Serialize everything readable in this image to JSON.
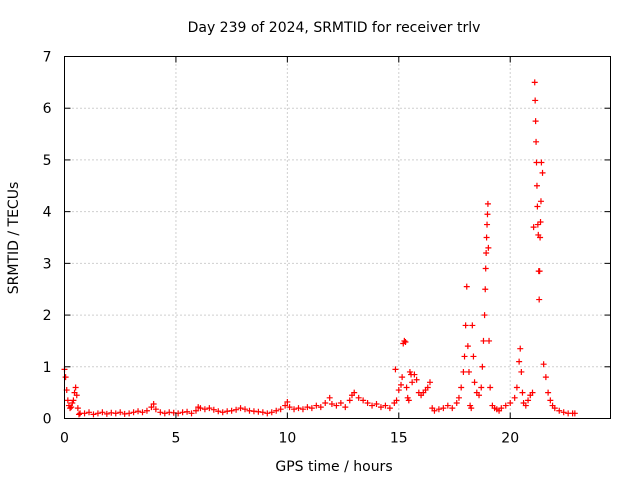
{
  "chart_data": {
    "type": "scatter",
    "title": "Day 239 of 2024, SRMTID for receiver trlv",
    "xlabel": "GPS time / hours",
    "ylabel": "SRMTID / TECUs",
    "xlim": [
      0,
      24.5
    ],
    "ylim": [
      0,
      7
    ],
    "x_ticks": [
      0,
      5,
      10,
      15,
      20
    ],
    "y_ticks": [
      0,
      1,
      2,
      3,
      4,
      5,
      6,
      7
    ],
    "x_tick_labels": [
      "0",
      "5",
      "10",
      "15",
      "20"
    ],
    "y_tick_labels": [
      "0",
      "1",
      "2",
      "3",
      "4",
      "5",
      "6",
      "7"
    ],
    "grid": true,
    "marker": "plus",
    "series": [
      {
        "name": "SRMTID",
        "color": "#ff0000",
        "x": [
          0.0,
          0.05,
          0.1,
          0.15,
          0.2,
          0.25,
          0.3,
          0.35,
          0.4,
          0.45,
          0.5,
          0.55,
          0.6,
          0.65,
          0.7,
          0.9,
          1.1,
          1.3,
          1.5,
          1.7,
          1.9,
          2.1,
          2.3,
          2.5,
          2.7,
          2.9,
          3.1,
          3.3,
          3.5,
          3.7,
          3.9,
          4.0,
          4.1,
          4.3,
          4.5,
          4.7,
          4.9,
          5.1,
          5.3,
          5.5,
          5.7,
          5.9,
          6.0,
          6.1,
          6.3,
          6.5,
          6.7,
          6.9,
          7.1,
          7.3,
          7.5,
          7.7,
          7.9,
          8.1,
          8.3,
          8.5,
          8.7,
          8.9,
          9.1,
          9.3,
          9.5,
          9.7,
          9.9,
          10.0,
          10.1,
          10.3,
          10.5,
          10.7,
          10.9,
          11.1,
          11.3,
          11.5,
          11.7,
          11.9,
          12.0,
          12.2,
          12.4,
          12.6,
          12.8,
          12.9,
          13.0,
          13.2,
          13.4,
          13.6,
          13.8,
          14.0,
          14.2,
          14.4,
          14.6,
          14.8,
          14.85,
          14.9,
          15.0,
          15.1,
          15.15,
          15.2,
          15.25,
          15.3,
          15.35,
          15.4,
          15.45,
          15.5,
          15.55,
          15.6,
          15.7,
          15.8,
          15.9,
          16.0,
          16.1,
          16.2,
          16.3,
          16.4,
          16.5,
          16.6,
          16.8,
          17.0,
          17.2,
          17.4,
          17.6,
          17.7,
          17.8,
          17.9,
          17.95,
          18.0,
          18.05,
          18.1,
          18.15,
          18.2,
          18.25,
          18.3,
          18.35,
          18.4,
          18.5,
          18.6,
          18.7,
          18.75,
          18.8,
          18.85,
          18.88,
          18.9,
          18.92,
          18.94,
          18.96,
          18.98,
          19.0,
          19.02,
          19.05,
          19.1,
          19.2,
          19.3,
          19.4,
          19.5,
          19.6,
          19.8,
          20.0,
          20.2,
          20.3,
          20.4,
          20.45,
          20.5,
          20.55,
          20.6,
          20.7,
          20.8,
          20.9,
          21.0,
          21.05,
          21.1,
          21.12,
          21.14,
          21.16,
          21.18,
          21.2,
          21.22,
          21.24,
          21.26,
          21.28,
          21.3,
          21.32,
          21.34,
          21.36,
          21.38,
          21.4,
          21.45,
          21.5,
          21.6,
          21.7,
          21.8,
          21.9,
          22.0,
          22.2,
          22.4,
          22.6,
          22.8,
          22.9
        ],
        "y": [
          0.95,
          0.8,
          0.55,
          0.35,
          0.25,
          0.2,
          0.22,
          0.3,
          0.35,
          0.5,
          0.6,
          0.45,
          0.2,
          0.08,
          0.1,
          0.1,
          0.12,
          0.08,
          0.1,
          0.12,
          0.09,
          0.11,
          0.1,
          0.12,
          0.09,
          0.1,
          0.12,
          0.14,
          0.12,
          0.15,
          0.22,
          0.28,
          0.18,
          0.12,
          0.1,
          0.12,
          0.11,
          0.1,
          0.12,
          0.13,
          0.1,
          0.15,
          0.22,
          0.2,
          0.18,
          0.2,
          0.17,
          0.14,
          0.12,
          0.14,
          0.15,
          0.17,
          0.2,
          0.18,
          0.15,
          0.14,
          0.13,
          0.12,
          0.1,
          0.12,
          0.15,
          0.18,
          0.25,
          0.32,
          0.22,
          0.18,
          0.2,
          0.18,
          0.22,
          0.2,
          0.25,
          0.22,
          0.3,
          0.4,
          0.28,
          0.25,
          0.3,
          0.22,
          0.35,
          0.45,
          0.5,
          0.4,
          0.35,
          0.3,
          0.25,
          0.28,
          0.22,
          0.25,
          0.2,
          0.3,
          0.95,
          0.35,
          0.55,
          0.65,
          0.8,
          1.45,
          1.5,
          1.48,
          0.6,
          0.4,
          0.35,
          0.9,
          0.85,
          0.7,
          0.85,
          0.75,
          0.5,
          0.45,
          0.5,
          0.55,
          0.6,
          0.7,
          0.2,
          0.15,
          0.18,
          0.2,
          0.25,
          0.2,
          0.3,
          0.4,
          0.6,
          0.9,
          1.2,
          1.8,
          2.55,
          1.4,
          0.9,
          0.25,
          0.2,
          1.8,
          1.2,
          0.7,
          0.5,
          0.45,
          0.6,
          1.0,
          1.5,
          2.0,
          2.5,
          2.9,
          3.2,
          3.5,
          3.75,
          3.95,
          4.15,
          3.3,
          1.5,
          0.6,
          0.25,
          0.2,
          0.18,
          0.15,
          0.2,
          0.25,
          0.3,
          0.4,
          0.6,
          1.1,
          1.35,
          0.9,
          0.5,
          0.3,
          0.25,
          0.35,
          0.45,
          0.5,
          3.7,
          6.5,
          6.15,
          5.75,
          5.35,
          4.95,
          4.5,
          4.1,
          3.75,
          3.55,
          2.85,
          2.3,
          2.85,
          3.5,
          3.8,
          4.2,
          4.95,
          4.75,
          1.05,
          0.8,
          0.5,
          0.35,
          0.25,
          0.2,
          0.15,
          0.12,
          0.1,
          0.1,
          0.1
        ]
      }
    ]
  }
}
